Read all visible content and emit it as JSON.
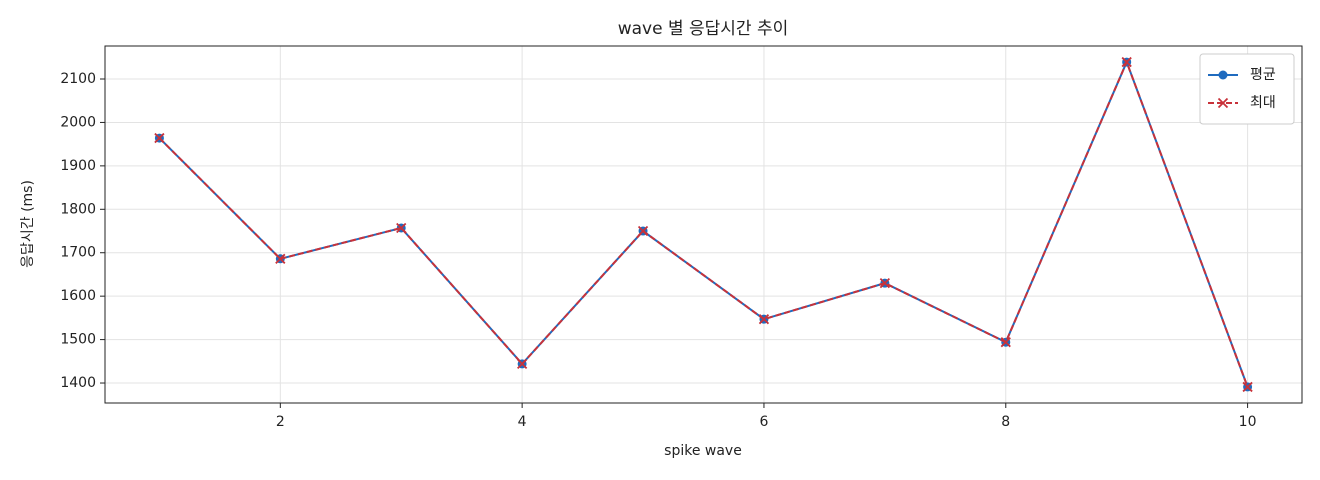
{
  "chart_data": {
    "type": "line",
    "title": "wave 별 응답시간 추이",
    "xlabel": "spike wave",
    "ylabel": "응답시간 (ms)",
    "x": [
      1,
      2,
      3,
      4,
      5,
      6,
      7,
      8,
      9,
      10
    ],
    "series": [
      {
        "name": "평균",
        "color": "#1f6bbf",
        "marker": "o",
        "linestyle": "solid",
        "values": [
          1964,
          1686,
          1757,
          1444,
          1750,
          1547,
          1630,
          1494,
          2139,
          1391
        ]
      },
      {
        "name": "최대",
        "color": "#c8323a",
        "marker": "x",
        "linestyle": "dashed",
        "values": [
          1964,
          1686,
          1757,
          1444,
          1750,
          1547,
          1630,
          1494,
          2139,
          1391
        ]
      }
    ],
    "xlim": [
      0.55,
      10.45
    ],
    "xticks": [
      2,
      4,
      6,
      8,
      10
    ],
    "ylim": [
      1354,
      2176
    ],
    "yticks": [
      1400,
      1500,
      1600,
      1700,
      1800,
      1900,
      2000,
      2100
    ],
    "grid": true,
    "legend": "upper right"
  }
}
